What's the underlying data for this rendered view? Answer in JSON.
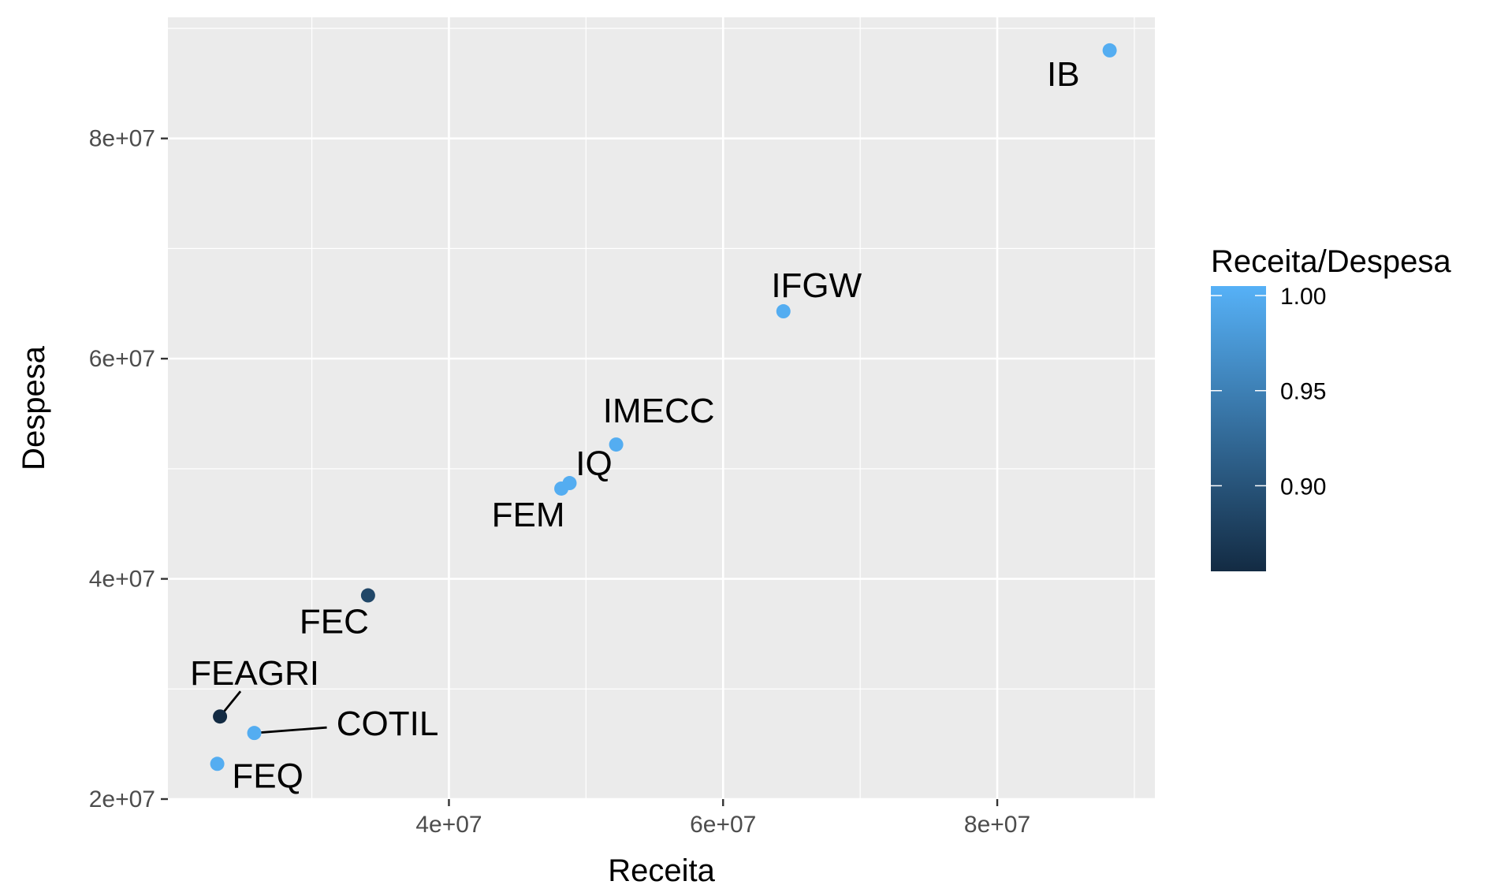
{
  "chart_data": {
    "type": "scatter",
    "xlabel": "Receita",
    "ylabel": "Despesa",
    "xlim": [
      19500000,
      91500000
    ],
    "ylim": [
      20000000,
      91000000
    ],
    "x_ticks": [
      40000000,
      60000000,
      80000000
    ],
    "x_tick_labels": [
      "4e+07",
      "6e+07",
      "8e+07"
    ],
    "y_ticks": [
      20000000,
      40000000,
      60000000,
      80000000
    ],
    "y_tick_labels": [
      "2e+07",
      "4e+07",
      "6e+07",
      "8e+07"
    ],
    "grid": true,
    "points": [
      {
        "label": "IB",
        "x": 88200000,
        "y": 88000000,
        "ratio": 1.0
      },
      {
        "label": "IFGW",
        "x": 64400000,
        "y": 64300000,
        "ratio": 1.0
      },
      {
        "label": "IMECC",
        "x": 52200000,
        "y": 52200000,
        "ratio": 1.0
      },
      {
        "label": "IQ",
        "x": 48800000,
        "y": 48700000,
        "ratio": 1.0
      },
      {
        "label": "FEM",
        "x": 48200000,
        "y": 48200000,
        "ratio": 1.0
      },
      {
        "label": "FEC",
        "x": 34100000,
        "y": 38500000,
        "ratio": 0.886
      },
      {
        "label": "FEAGRI",
        "x": 23300000,
        "y": 27500000,
        "ratio": 0.85
      },
      {
        "label": "COTIL",
        "x": 25800000,
        "y": 26000000,
        "ratio": 1.0
      },
      {
        "label": "FEQ",
        "x": 23100000,
        "y": 23200000,
        "ratio": 1.0
      }
    ],
    "legend": {
      "title": "Receita/Despesa",
      "placement": "right",
      "min": 0.855,
      "max": 1.005,
      "ticks": [
        0.9,
        0.95,
        1.0
      ],
      "tick_labels": [
        "0.90",
        "0.95",
        "1.00"
      ],
      "color_low": "#132B43",
      "color_high": "#56B1F7"
    },
    "panel_background": "#EBEBEB",
    "grid_color": "#FFFFFF"
  }
}
